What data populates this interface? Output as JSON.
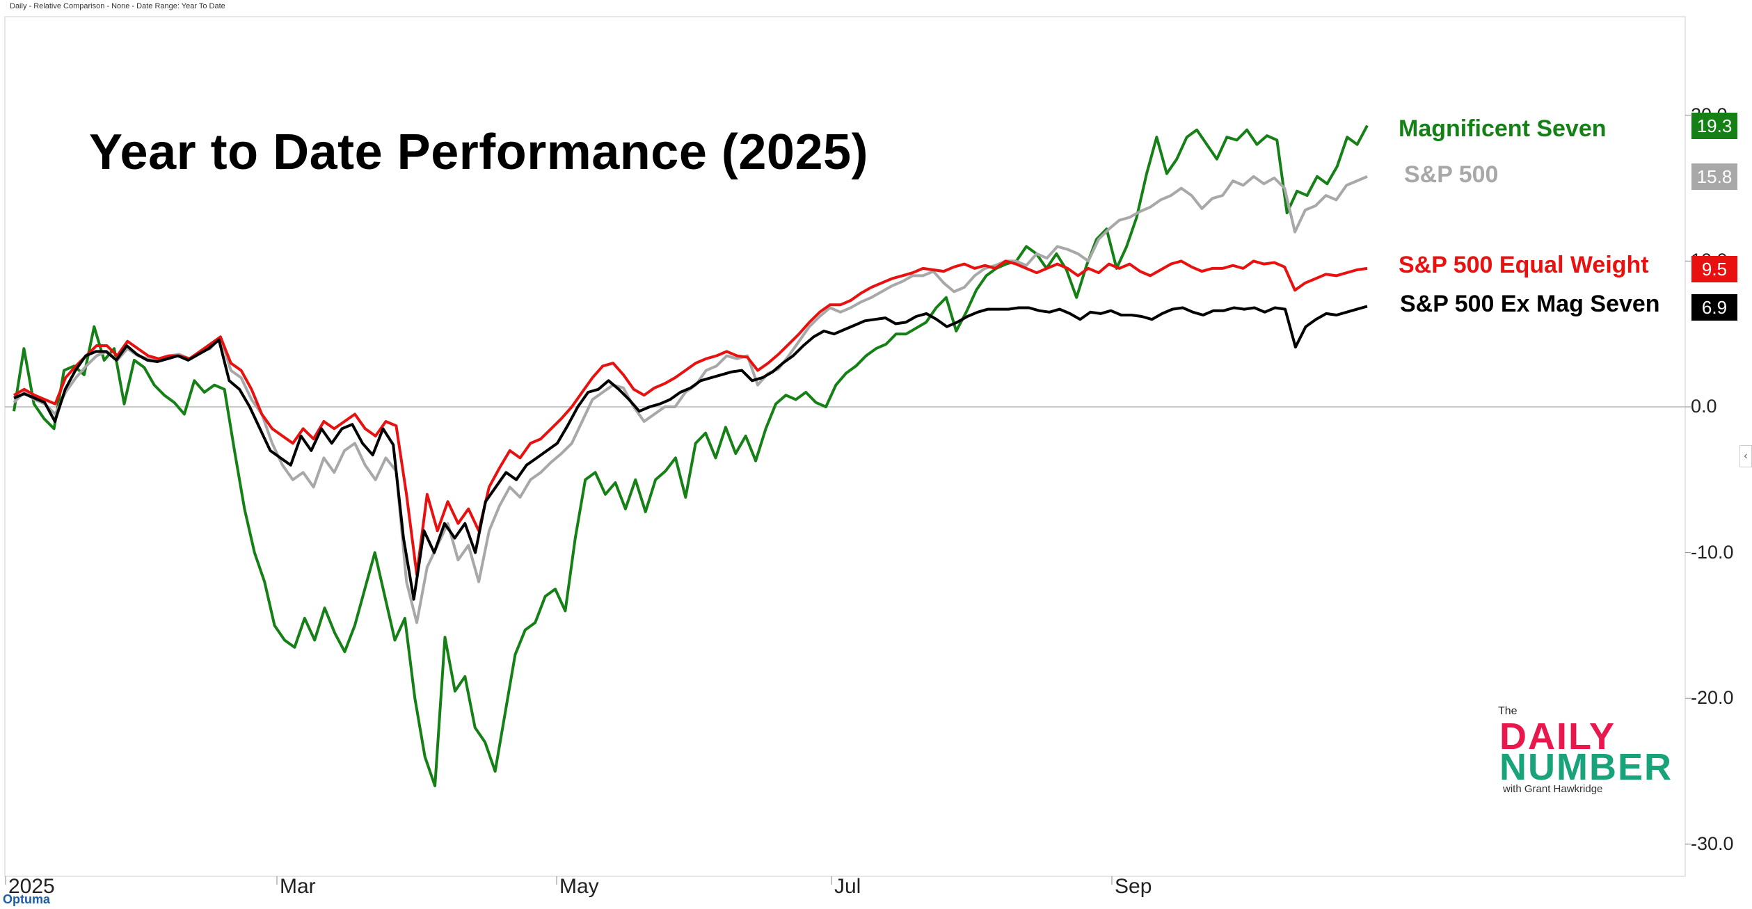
{
  "header": {
    "text": "Daily - Relative Comparison - None - Date Range: Year To Date"
  },
  "brand": "Optuma",
  "logo": {
    "the": "The",
    "daily": "DAILY",
    "number": "NUMBER",
    "sub": "with Grant Hawkridge"
  },
  "chart_data": {
    "type": "line",
    "title": "Year to Date Performance (2025)",
    "xlabel": "",
    "ylabel": "",
    "x_tick_labels": [
      "2025",
      "Mar",
      "May",
      "Jul",
      "Sep"
    ],
    "y_tick_labels": [
      "20.0",
      "10.0",
      "0.0",
      "-10.0",
      "-20.0",
      "-30.0"
    ],
    "ylim": [
      -32,
      27
    ],
    "grid": false,
    "legend_position": "right",
    "series": [
      {
        "name": "Magnificent Seven",
        "color": "#158015",
        "last_value": "19.3",
        "values": [
          -0.3,
          4,
          0.2,
          -0.8,
          -1.5,
          2.5,
          2.8,
          2.2,
          5.5,
          3.2,
          4,
          0.2,
          3.2,
          2.7,
          1.5,
          0.8,
          0.3,
          -0.5,
          1.8,
          1,
          1.5,
          1.2,
          -3,
          -7,
          -10,
          -12,
          -15,
          -16,
          -16.5,
          -14.5,
          -16,
          -13.8,
          -15.5,
          -16.8,
          -15,
          -12.5,
          -10,
          -13,
          -16,
          -14.5,
          -20,
          -24,
          -26,
          -15.8,
          -19.5,
          -18.5,
          -22,
          -23,
          -25,
          -21,
          -17,
          -15.3,
          -14.8,
          -13,
          -12.5,
          -14,
          -9,
          -5,
          -4.5,
          -6,
          -5.2,
          -7,
          -5,
          -7.2,
          -5,
          -4.4,
          -3.5,
          -6.2,
          -2.5,
          -1.8,
          -3.5,
          -1.4,
          -3.2,
          -2,
          -3.7,
          -1.5,
          0.2,
          0.8,
          0.5,
          1,
          0.3,
          0,
          1.5,
          2.3,
          2.8,
          3.5,
          4,
          4.3,
          5,
          5,
          5.4,
          5.8,
          6.8,
          7.5,
          5.2,
          6.5,
          8,
          9,
          9.5,
          9.8,
          10,
          11,
          10.5,
          9.5,
          10.5,
          9.4,
          7.5,
          9.7,
          11.5,
          12.2,
          9.5,
          11,
          13,
          16,
          18.5,
          16,
          17,
          18.5,
          19,
          18,
          17,
          18.5,
          18.3,
          19,
          18,
          18.6,
          18.3,
          13.3,
          14.8,
          14.5,
          15.8,
          15.3,
          16.5,
          18.5,
          18,
          19.3
        ]
      },
      {
        "name": "S&P 500",
        "color": "#a8a8a8",
        "last_value": "15.8",
        "values": [
          0.3,
          1,
          0.5,
          0.2,
          -0.5,
          1,
          2,
          2.8,
          3.5,
          3.8,
          3.2,
          4,
          3.5,
          3.3,
          3.2,
          3.5,
          3.6,
          3.3,
          3.8,
          4,
          4.8,
          2.5,
          2,
          0.5,
          -0.5,
          -2.5,
          -4,
          -5,
          -4.5,
          -5.5,
          -3.5,
          -4.5,
          -3,
          -2.5,
          -4,
          -5,
          -3.5,
          -4.4,
          -12,
          -14.8,
          -11,
          -9.5,
          -8,
          -10.5,
          -9.5,
          -12,
          -8.5,
          -6.8,
          -5.5,
          -6.2,
          -5,
          -4.5,
          -3.8,
          -3.2,
          -2.5,
          -1,
          0.5,
          1,
          1.5,
          1.3,
          0,
          -1,
          -0.5,
          0,
          0,
          1,
          1.5,
          2.5,
          2.8,
          3.5,
          3.3,
          3.5,
          1.5,
          2.3,
          2.6,
          3.5,
          4.5,
          5.5,
          6.2,
          6.8,
          6.5,
          6.8,
          7.2,
          7.5,
          7.9,
          8.3,
          8.6,
          9,
          9,
          9.3,
          8.5,
          7.9,
          8.2,
          9,
          9.5,
          9.7,
          10,
          10,
          9.7,
          10.5,
          10.2,
          11,
          10.8,
          10.5,
          10,
          11.5,
          12.2,
          12.8,
          13,
          13.4,
          13.7,
          14.2,
          14.5,
          15,
          14.5,
          13.6,
          14.3,
          14.5,
          15.5,
          15.2,
          15.8,
          15.3,
          15.7,
          15,
          12,
          13.5,
          13.8,
          14.5,
          14.2,
          15.2,
          15.5,
          15.8
        ]
      },
      {
        "name": "S&P 500 Equal Weight",
        "color": "#e8110f",
        "last_value": "9.5",
        "values": [
          0.8,
          1.2,
          0.8,
          0.5,
          0.2,
          2,
          2.8,
          3.5,
          4.2,
          4.2,
          3.5,
          4.5,
          4,
          3.5,
          3.3,
          3.5,
          3.5,
          3.3,
          3.8,
          4.3,
          4.8,
          3,
          2.5,
          1.2,
          -0.5,
          -1.5,
          -2,
          -2.5,
          -1.5,
          -2.2,
          -1,
          -1.5,
          -1,
          -0.5,
          -1.5,
          -2,
          -1,
          -1.3,
          -6,
          -11.5,
          -6,
          -8.5,
          -6.5,
          -8,
          -7,
          -8.5,
          -5.5,
          -4.2,
          -3,
          -3.5,
          -2.5,
          -2.2,
          -1.5,
          -0.8,
          0,
          1,
          2,
          2.8,
          3,
          2.2,
          1.2,
          0.8,
          1.3,
          1.6,
          2,
          2.5,
          3,
          3.3,
          3.5,
          3.8,
          3.5,
          3.4,
          2.5,
          3,
          3.6,
          4.3,
          5,
          5.8,
          6.5,
          7,
          7,
          7.3,
          7.8,
          8.2,
          8.5,
          8.8,
          9,
          9.2,
          9.5,
          9.4,
          9.3,
          9.6,
          9.8,
          9.5,
          9.7,
          9.5,
          10,
          9.8,
          9.5,
          9.2,
          9.5,
          9.8,
          9.5,
          9,
          9.5,
          9.2,
          9.8,
          9.5,
          9.8,
          9.3,
          9,
          9.4,
          9.8,
          10,
          9.6,
          9.3,
          9.5,
          9.5,
          9.7,
          9.5,
          10,
          9.8,
          9.9,
          9.6,
          8,
          8.5,
          8.8,
          9.1,
          9,
          9.2,
          9.4,
          9.5
        ]
      },
      {
        "name": "S&P 500 Ex Mag Seven",
        "color": "#000000",
        "last_value": "6.9",
        "values": [
          0.6,
          0.9,
          0.6,
          0.3,
          -1,
          1.2,
          2.5,
          3.5,
          3.8,
          3.8,
          3.2,
          4.2,
          3.6,
          3.2,
          3.1,
          3.3,
          3.5,
          3.2,
          3.6,
          4,
          4.6,
          1.8,
          1.2,
          0,
          -1.5,
          -3,
          -3.5,
          -4,
          -2,
          -3,
          -1.5,
          -2.5,
          -1.5,
          -1.2,
          -2.5,
          -3.3,
          -1.5,
          -2.6,
          -9,
          -13.2,
          -8.5,
          -10,
          -8,
          -9,
          -8,
          -10,
          -6.5,
          -5.5,
          -4.5,
          -5,
          -4,
          -3.5,
          -3,
          -2.5,
          -1.3,
          0,
          1,
          1.2,
          1.8,
          1.2,
          0.5,
          -0.3,
          0,
          0.2,
          0.5,
          1,
          1.3,
          1.8,
          2,
          2.2,
          2.4,
          2.5,
          1.8,
          2,
          2.4,
          3,
          3.5,
          4.2,
          4.8,
          5.2,
          5,
          5.3,
          5.6,
          5.9,
          6,
          6.1,
          5.7,
          5.8,
          6.2,
          6.4,
          6,
          5.5,
          5.8,
          6.2,
          6.5,
          6.7,
          6.7,
          6.7,
          6.8,
          6.8,
          6.6,
          6.5,
          6.7,
          6.4,
          6,
          6.5,
          6.4,
          6.6,
          6.3,
          6.3,
          6.2,
          6,
          6.4,
          6.7,
          6.8,
          6.5,
          6.3,
          6.6,
          6.6,
          6.8,
          6.7,
          6.8,
          6.5,
          6.8,
          6.7,
          4.1,
          5.5,
          6,
          6.4,
          6.3,
          6.5,
          6.7,
          6.9
        ]
      }
    ]
  }
}
